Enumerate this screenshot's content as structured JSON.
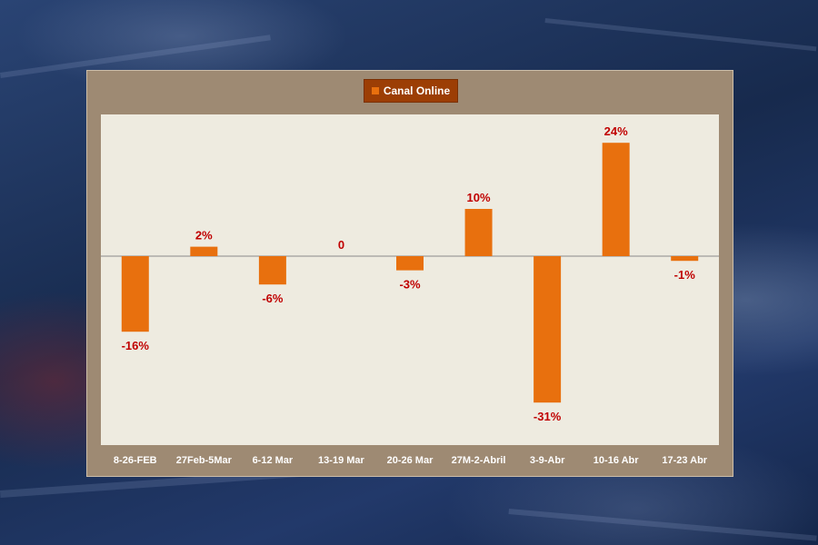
{
  "chart_data": {
    "type": "bar",
    "legend": "top-center",
    "grid": false,
    "categories": [
      "8-26-FEB",
      "27Feb-5Mar",
      "6-12 Mar",
      "13-19 Mar",
      "20-26 Mar",
      "27M-2-Abril",
      "3-9-Abr",
      "10-16 Abr",
      "17-23 Abr"
    ],
    "series": [
      {
        "name": "Canal Online",
        "values": [
          -16,
          2,
          -6,
          0,
          -3,
          10,
          -31,
          24,
          -1
        ],
        "labels": [
          "-16%",
          "2%",
          "-6%",
          "0",
          "-3%",
          "10%",
          "-31%",
          "24%",
          "-1%"
        ]
      }
    ],
    "ylim": [
      -40,
      30
    ],
    "colors": {
      "bar": "#e8700e",
      "label": "#c00000",
      "panel": "#9e8a73",
      "plot": "#eeebe0",
      "legend_bg": "#9c3e05"
    }
  }
}
